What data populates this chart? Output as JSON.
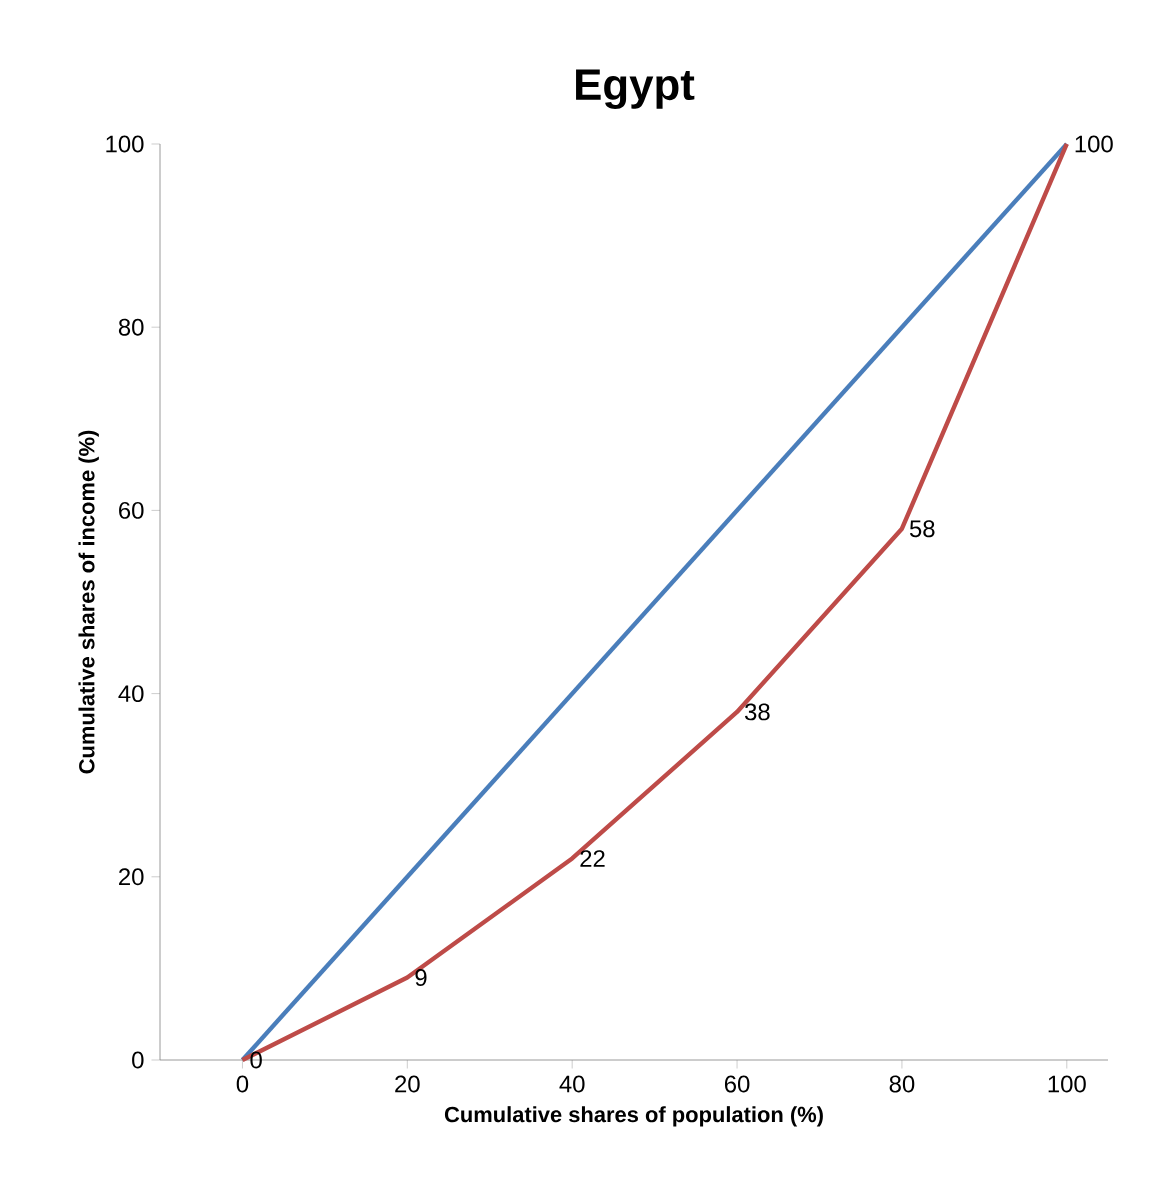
{
  "chart_data": {
    "type": "line",
    "title": "Egypt",
    "xlabel": "Cumulative shares of population (%)",
    "ylabel": "Cumulative shares of income (%)",
    "x": [
      0,
      20,
      40,
      60,
      80,
      100
    ],
    "series": [
      {
        "color": "#4a7ebb",
        "x": [
          0,
          100
        ],
        "values": [
          0,
          100
        ]
      },
      {
        "color": "#be4b48",
        "values": [
          0,
          9,
          22,
          38,
          58,
          100
        ],
        "value_labels": [
          "0",
          "9",
          "22",
          "38",
          "58",
          "100"
        ]
      }
    ],
    "xlim": [
      -10,
      105
    ],
    "ylim": [
      0,
      100
    ],
    "xticks": [
      0,
      20,
      40,
      60,
      80,
      100
    ],
    "yticks": [
      0,
      20,
      40,
      60,
      80,
      100
    ],
    "grid": false,
    "marker": "none",
    "line_style": "solid"
  }
}
